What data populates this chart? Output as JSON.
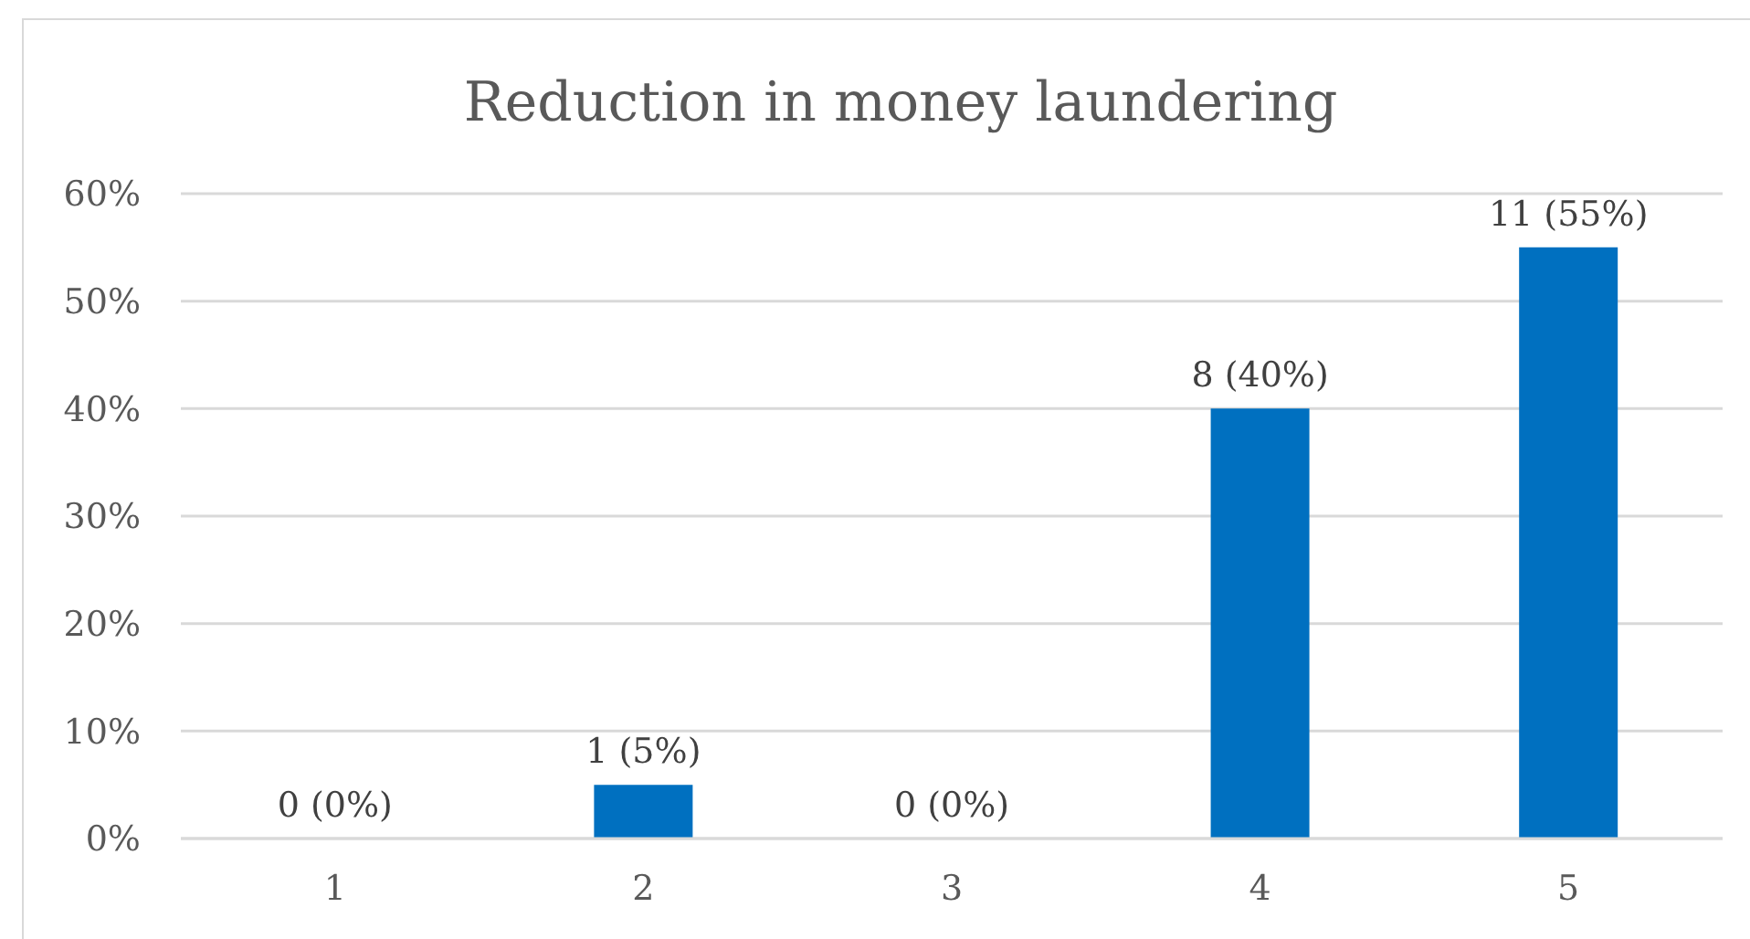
{
  "chart_data": {
    "type": "bar",
    "title": "Reduction in money laundering",
    "categories": [
      "1",
      "2",
      "3",
      "4",
      "5"
    ],
    "values": [
      0,
      5,
      0,
      40,
      55
    ],
    "color": "#0070c0",
    "value_labels": [
      "0 (0%)",
      "1 (5%)",
      "0 (0%)",
      "8 (40%)",
      "11 (55%)"
    ],
    "ylim": [
      0,
      60
    ],
    "yticks": [
      {
        "value": 0,
        "label": "0%"
      },
      {
        "value": 10,
        "label": "10%"
      },
      {
        "value": 20,
        "label": "20%"
      },
      {
        "value": 30,
        "label": "30%"
      },
      {
        "value": 40,
        "label": "40%"
      },
      {
        "value": 50,
        "label": "50%"
      },
      {
        "value": 60,
        "label": "60%"
      }
    ],
    "grid": "y"
  }
}
